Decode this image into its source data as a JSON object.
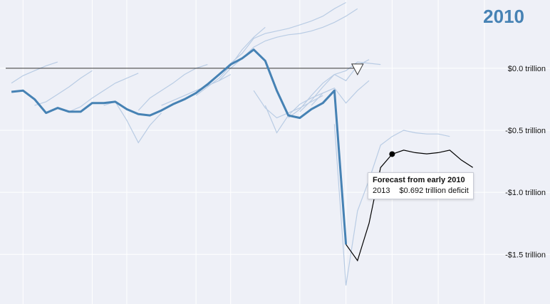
{
  "year_label": "2010",
  "colors": {
    "background": "#eef0f7",
    "actual": "#4682b4",
    "forecast_history": "#b9cce4",
    "forecast_current": "#000000",
    "zero_line": "#333333",
    "grid": "#ffffff"
  },
  "tooltip": {
    "title": "Forecast from early 2010",
    "year": "2013",
    "value_text": "$0.692 trillion deficit"
  },
  "chart_data": {
    "type": "line",
    "title": "2010",
    "xlabel": "",
    "ylabel": "",
    "xlim": [
      1979.5,
      2021.5
    ],
    "ylim": [
      -1.9,
      0.55
    ],
    "y_ticks": [
      {
        "value": 0.0,
        "label": "$0.0 trillion"
      },
      {
        "value": -0.5,
        "label": "-$0.5 trillion"
      },
      {
        "value": -1.0,
        "label": "-$1.0 trillion"
      },
      {
        "value": -1.5,
        "label": "-$1.5 trillion"
      }
    ],
    "x_gridlines": [
      1981,
      1987,
      1990,
      1996,
      1999,
      2005,
      2009,
      2013,
      2017,
      2021
    ],
    "grid": true,
    "marker_year": 2010,
    "actual": {
      "x": [
        1980,
        1981,
        1982,
        1983,
        1984,
        1985,
        1986,
        1987,
        1988,
        1989,
        1990,
        1991,
        1992,
        1993,
        1994,
        1995,
        1996,
        1997,
        1998,
        1999,
        2000,
        2001,
        2002,
        2003,
        2004,
        2005,
        2006,
        2007,
        2008,
        2009
      ],
      "values": [
        -0.19,
        -0.18,
        -0.25,
        -0.36,
        -0.32,
        -0.35,
        -0.35,
        -0.28,
        -0.28,
        -0.27,
        -0.33,
        -0.37,
        -0.38,
        -0.34,
        -0.29,
        -0.25,
        -0.2,
        -0.13,
        -0.05,
        0.03,
        0.08,
        0.15,
        0.06,
        -0.18,
        -0.38,
        -0.4,
        -0.33,
        -0.28,
        -0.18,
        -1.42
      ]
    },
    "current_forecast": {
      "x": [
        2009,
        2010,
        2011,
        2012,
        2013,
        2014,
        2015,
        2016,
        2017,
        2018,
        2019,
        2020
      ],
      "values": [
        -1.42,
        -1.55,
        -1.25,
        -0.8,
        -0.692,
        -0.66,
        -0.68,
        -0.69,
        -0.68,
        -0.66,
        -0.74,
        -0.8
      ],
      "highlight_x": 2013,
      "highlight_value": -0.692
    },
    "historical_forecasts": [
      {
        "x": [
          1980,
          1981,
          1982,
          1983,
          1984
        ],
        "values": [
          -0.12,
          -0.06,
          -0.02,
          0.02,
          0.05
        ]
      },
      {
        "x": [
          1982,
          1983,
          1984,
          1985,
          1986,
          1987
        ],
        "values": [
          -0.3,
          -0.27,
          -0.21,
          -0.15,
          -0.08,
          -0.02
        ]
      },
      {
        "x": [
          1985,
          1986,
          1987,
          1988,
          1989,
          1990,
          1991
        ],
        "values": [
          -0.35,
          -0.31,
          -0.24,
          -0.18,
          -0.12,
          -0.08,
          -0.04
        ]
      },
      {
        "x": [
          1988,
          1989,
          1990,
          1991,
          1992,
          1993
        ],
        "values": [
          -0.3,
          -0.27,
          -0.42,
          -0.6,
          -0.46,
          -0.36
        ]
      },
      {
        "x": [
          1991,
          1992,
          1993,
          1994,
          1995,
          1996,
          1997
        ],
        "values": [
          -0.34,
          -0.24,
          -0.18,
          -0.12,
          -0.05,
          0.0,
          0.03
        ]
      },
      {
        "x": [
          1993,
          1994,
          1995,
          1996,
          1997,
          1998,
          1999
        ],
        "values": [
          -0.3,
          -0.26,
          -0.22,
          -0.18,
          -0.14,
          -0.1,
          -0.05
        ]
      },
      {
        "x": [
          1996,
          1997,
          1998,
          1999,
          2000,
          2001,
          2002
        ],
        "values": [
          -0.22,
          -0.15,
          -0.08,
          0.02,
          0.15,
          0.25,
          0.33
        ]
      },
      {
        "x": [
          1997,
          1998,
          1999,
          2000,
          2001,
          2002,
          2003,
          2004,
          2005,
          2006,
          2007,
          2008,
          2009
        ],
        "values": [
          -0.14,
          -0.05,
          0.04,
          0.12,
          0.24,
          0.28,
          0.3,
          0.32,
          0.35,
          0.38,
          0.42,
          0.48,
          0.53
        ]
      },
      {
        "x": [
          1998,
          1999,
          2000,
          2001,
          2002,
          2003,
          2004,
          2005,
          2006,
          2007,
          2008,
          2009,
          2010
        ],
        "values": [
          -0.1,
          0.0,
          0.08,
          0.17,
          0.22,
          0.25,
          0.27,
          0.28,
          0.3,
          0.33,
          0.37,
          0.42,
          0.48
        ]
      },
      {
        "x": [
          2001,
          2002,
          2003,
          2004,
          2005,
          2006,
          2007
        ],
        "values": [
          -0.18,
          -0.32,
          -0.4,
          -0.36,
          -0.32,
          -0.27,
          -0.22
        ]
      },
      {
        "x": [
          2002,
          2003,
          2004,
          2005,
          2006,
          2007,
          2008
        ],
        "values": [
          -0.3,
          -0.52,
          -0.38,
          -0.29,
          -0.24,
          -0.2,
          -0.16
        ]
      },
      {
        "x": [
          2004,
          2005,
          2006,
          2007,
          2008,
          2009,
          2010,
          2011
        ],
        "values": [
          -0.4,
          -0.33,
          -0.22,
          -0.12,
          -0.05,
          -0.1,
          0.02,
          0.07
        ]
      },
      {
        "x": [
          2005,
          2006,
          2007,
          2008,
          2009,
          2010,
          2011,
          2012
        ],
        "values": [
          -0.35,
          -0.26,
          -0.15,
          -0.05,
          -0.02,
          0.05,
          0.04,
          0.03
        ]
      },
      {
        "x": [
          2006,
          2007,
          2008,
          2009,
          2010,
          2011
        ],
        "values": [
          -0.3,
          -0.2,
          -0.16,
          -0.28,
          -0.18,
          -0.1
        ]
      },
      {
        "x": [
          2008,
          2009,
          2010,
          2011,
          2012,
          2013,
          2014,
          2015,
          2016,
          2017,
          2018
        ],
        "values": [
          -0.45,
          -1.75,
          -1.15,
          -0.9,
          -0.62,
          -0.55,
          -0.5,
          -0.52,
          -0.53,
          -0.53,
          -0.55
        ]
      }
    ]
  }
}
